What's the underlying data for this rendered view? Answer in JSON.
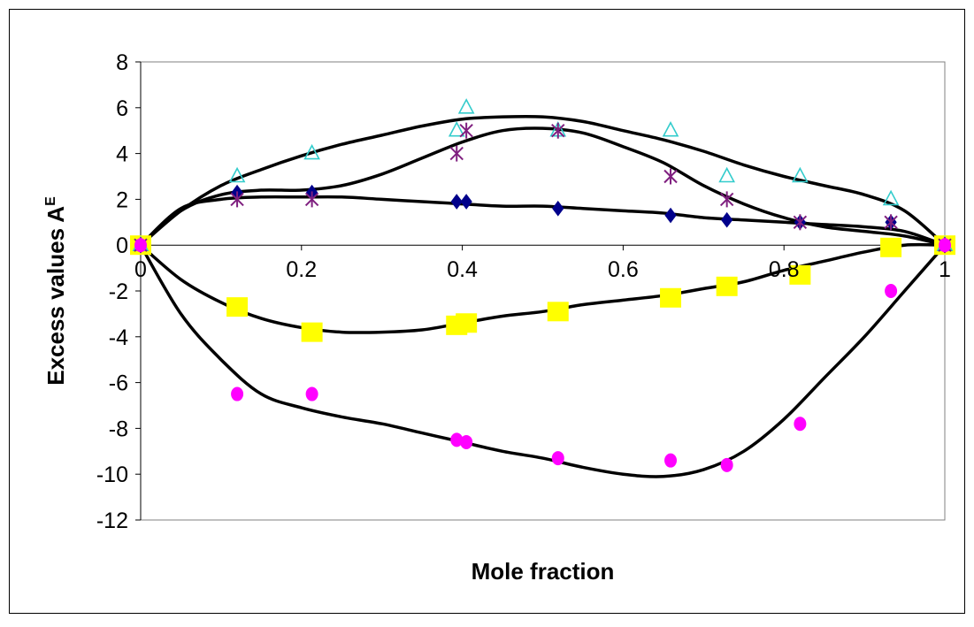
{
  "chart_data": {
    "type": "scatter",
    "title": "",
    "xlabel": "Mole fraction",
    "ylabel": "Excess values A",
    "ylabel_superscript": "E",
    "xlim": [
      0,
      1
    ],
    "ylim": [
      -12,
      8
    ],
    "x_ticks": [
      "0",
      "0.2",
      "0.4",
      "0.6",
      "0.8",
      "1"
    ],
    "y_ticks": [
      "-12",
      "-10",
      "-8",
      "-6",
      "-4",
      "-2",
      "0",
      "2",
      "4",
      "6",
      "8"
    ],
    "grid": false,
    "legend": "none",
    "series": [
      {
        "marker": "diamond",
        "color": "#00008b",
        "x": [
          0,
          0.12,
          0.213,
          0.393,
          0.405,
          0.519,
          0.659,
          0.729,
          0.82,
          0.933,
          1.0
        ],
        "y": [
          0,
          2.3,
          2.3,
          1.9,
          1.9,
          1.6,
          1.3,
          1.1,
          1.0,
          1.0,
          0
        ]
      },
      {
        "marker": "square",
        "color": "#ffff00",
        "x": [
          0,
          0.12,
          0.213,
          0.393,
          0.405,
          0.519,
          0.659,
          0.729,
          0.82,
          0.933,
          1.0
        ],
        "y": [
          0,
          -2.7,
          -3.8,
          -3.5,
          -3.4,
          -2.9,
          -2.3,
          -1.8,
          -1.3,
          -0.1,
          0
        ]
      },
      {
        "marker": "triangle",
        "color": "#33cccc",
        "x": [
          0,
          0.12,
          0.213,
          0.393,
          0.405,
          0.519,
          0.659,
          0.729,
          0.82,
          0.933,
          1.0
        ],
        "y": [
          0,
          3.0,
          4.0,
          5.0,
          6.0,
          5.0,
          5.0,
          3.0,
          3.0,
          2.0,
          0
        ]
      },
      {
        "marker": "star",
        "color": "#7f1f7f",
        "x": [
          0,
          0.12,
          0.213,
          0.393,
          0.405,
          0.519,
          0.659,
          0.729,
          0.82,
          0.933,
          1.0
        ],
        "y": [
          0,
          2.0,
          2.0,
          4.0,
          5.0,
          5.0,
          3.0,
          2.0,
          1.0,
          1.0,
          0
        ]
      },
      {
        "marker": "circle",
        "color": "#ff00ff",
        "x": [
          0,
          0.12,
          0.213,
          0.393,
          0.405,
          0.519,
          0.659,
          0.729,
          0.82,
          0.933,
          1.0
        ],
        "y": [
          0,
          -6.5,
          -6.5,
          -8.5,
          -8.6,
          -9.3,
          -9.4,
          -9.6,
          -7.8,
          -2.0,
          0
        ]
      }
    ],
    "fit_curves": [
      {
        "color": "#000000",
        "x": [
          0,
          0.05,
          0.1,
          0.15,
          0.2,
          0.25,
          0.3,
          0.35,
          0.4,
          0.45,
          0.5,
          0.55,
          0.6,
          0.65,
          0.7,
          0.75,
          0.8,
          0.85,
          0.9,
          0.95,
          1.0
        ],
        "y": [
          0,
          1.6,
          2.0,
          2.1,
          2.1,
          2.1,
          2.0,
          1.9,
          1.8,
          1.7,
          1.7,
          1.6,
          1.5,
          1.4,
          1.2,
          1.1,
          1.0,
          0.9,
          0.8,
          0.6,
          0
        ]
      },
      {
        "color": "#000000",
        "x": [
          0,
          0.05,
          0.1,
          0.15,
          0.2,
          0.25,
          0.3,
          0.35,
          0.4,
          0.45,
          0.5,
          0.55,
          0.6,
          0.65,
          0.7,
          0.75,
          0.8,
          0.85,
          0.9,
          0.95,
          1.0
        ],
        "y": [
          0,
          -1.5,
          -2.5,
          -3.2,
          -3.6,
          -3.8,
          -3.8,
          -3.7,
          -3.4,
          -3.1,
          -2.9,
          -2.6,
          -2.4,
          -2.2,
          -1.9,
          -1.6,
          -1.1,
          -0.7,
          -0.3,
          0.0,
          0
        ]
      },
      {
        "color": "#000000",
        "x": [
          0,
          0.05,
          0.1,
          0.15,
          0.2,
          0.25,
          0.3,
          0.35,
          0.4,
          0.45,
          0.5,
          0.55,
          0.6,
          0.65,
          0.7,
          0.75,
          0.8,
          0.85,
          0.9,
          0.95,
          1.0
        ],
        "y": [
          0,
          1.5,
          2.6,
          3.3,
          3.9,
          4.4,
          4.8,
          5.2,
          5.5,
          5.6,
          5.6,
          5.4,
          5.0,
          4.6,
          4.1,
          3.5,
          3.0,
          2.6,
          2.2,
          1.5,
          0
        ]
      },
      {
        "color": "#000000",
        "x": [
          0,
          0.05,
          0.1,
          0.15,
          0.2,
          0.25,
          0.3,
          0.35,
          0.4,
          0.45,
          0.5,
          0.55,
          0.6,
          0.65,
          0.7,
          0.75,
          0.8,
          0.85,
          0.9,
          0.95,
          1.0
        ],
        "y": [
          0,
          1.5,
          2.2,
          2.4,
          2.4,
          2.6,
          3.1,
          3.8,
          4.5,
          5.0,
          5.1,
          4.9,
          4.3,
          3.6,
          2.6,
          1.8,
          1.2,
          0.8,
          0.6,
          0.4,
          0
        ]
      },
      {
        "color": "#000000",
        "x": [
          0,
          0.05,
          0.1,
          0.15,
          0.2,
          0.25,
          0.3,
          0.35,
          0.4,
          0.45,
          0.5,
          0.55,
          0.6,
          0.65,
          0.7,
          0.75,
          0.8,
          0.85,
          0.9,
          0.95,
          1.0
        ],
        "y": [
          0,
          -3.0,
          -5.0,
          -6.5,
          -7.1,
          -7.5,
          -7.8,
          -8.2,
          -8.6,
          -9.0,
          -9.3,
          -9.7,
          -10.0,
          -10.1,
          -9.8,
          -9.0,
          -7.6,
          -5.8,
          -4.0,
          -2.0,
          0
        ]
      }
    ]
  }
}
